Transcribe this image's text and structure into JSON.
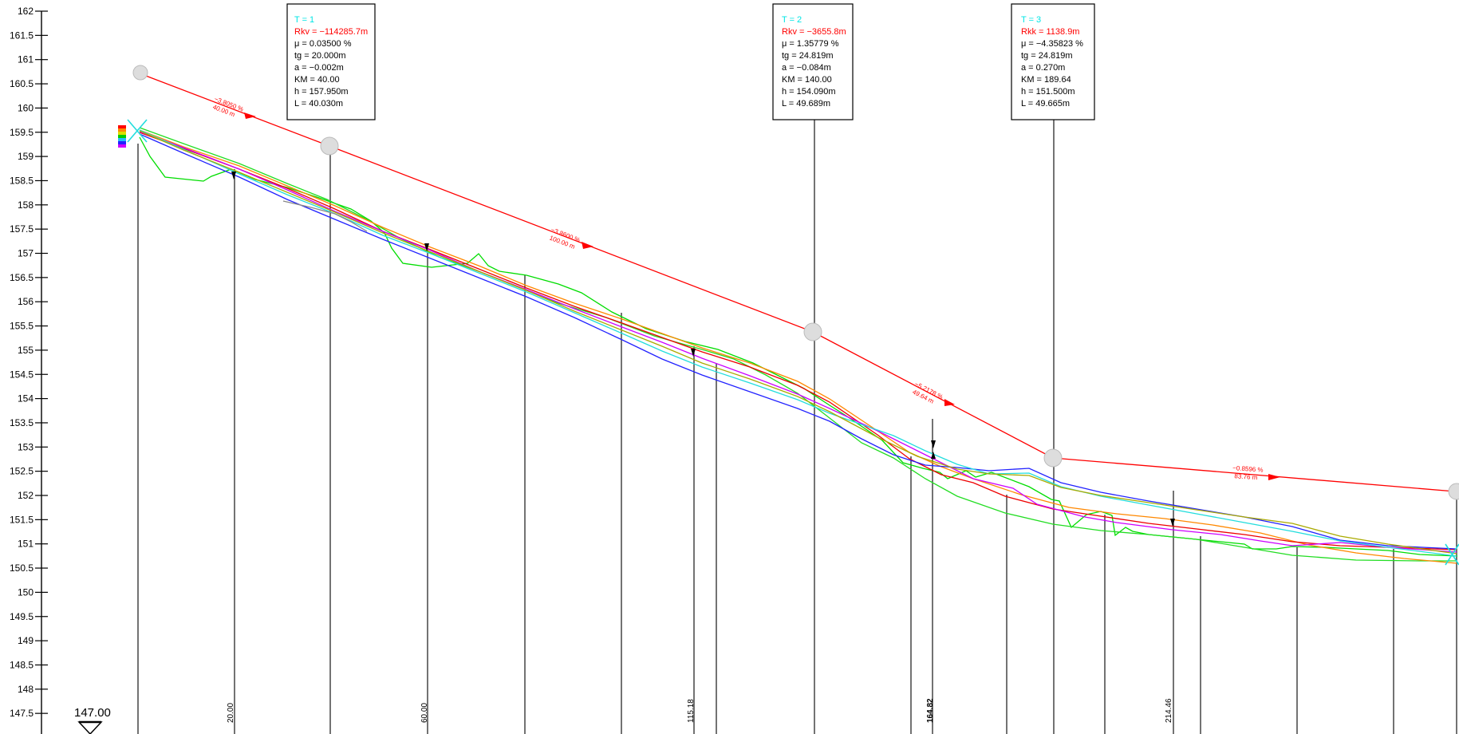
{
  "drawing": {
    "datum_label": "147.00",
    "y_axis": {
      "min": 147.5,
      "max": 162,
      "step": 0.5,
      "tick_labels": [
        "162",
        "161.5",
        "161",
        "160.5",
        "160",
        "159.5",
        "159",
        "158.5",
        "158",
        "157.5",
        "157",
        "156.5",
        "156",
        "155.5",
        "155",
        "154.5",
        "154",
        "153.5",
        "153",
        "152.5",
        "152",
        "151.5",
        "151",
        "150.5",
        "150",
        "149.5",
        "149",
        "148.5",
        "148",
        "147.5"
      ]
    },
    "station_labels": [
      "20.00",
      "60.00",
      "115.18",
      "164.82",
      "214.46"
    ],
    "curve_boxes": [
      {
        "lines": [
          "T = 1",
          "Rkv = −114285.7m",
          "μ = 0.03500 %",
          "tg = 20.000m",
          "a = −0.002m",
          "KM = 40.00",
          "h = 157.950m",
          "L = 40.030m"
        ]
      },
      {
        "lines": [
          "T = 2",
          "Rkv = −3655.8m",
          "μ = 1.35779 %",
          "tg = 24.819m",
          "a = −0.084m",
          "KM = 140.00",
          "h = 154.090m",
          "L = 49.689m"
        ]
      },
      {
        "lines": [
          "T = 3",
          "Rkk = 1138.9m",
          "μ = −4.35823 %",
          "tg = 24.819m",
          "a = 0.270m",
          "KM = 189.64",
          "h = 151.500m",
          "L = 49.665m"
        ]
      }
    ],
    "grade_labels": [
      {
        "grade": "−3.8050 %",
        "length": "40.00 m"
      },
      {
        "grade": "−3.8600 %",
        "length": "100.00 m"
      },
      {
        "grade": "−5.2178 %",
        "length": "49.64 m"
      },
      {
        "grade": "−0.8596 %",
        "length": "83.76 m"
      }
    ],
    "colors": {
      "tangent": "#ff0000",
      "box_title": "#00e5e5",
      "box_radius": "#ff0000",
      "ground": "#00dd00",
      "profile_orange": "#ff8800",
      "profile_red": "#ee0000",
      "profile_magenta": "#cc00ff",
      "profile_blue": "#2222ff",
      "profile_cyan": "#22dddd",
      "profile_olive": "#aaaa00",
      "profile_green": "#22bb22"
    }
  }
}
